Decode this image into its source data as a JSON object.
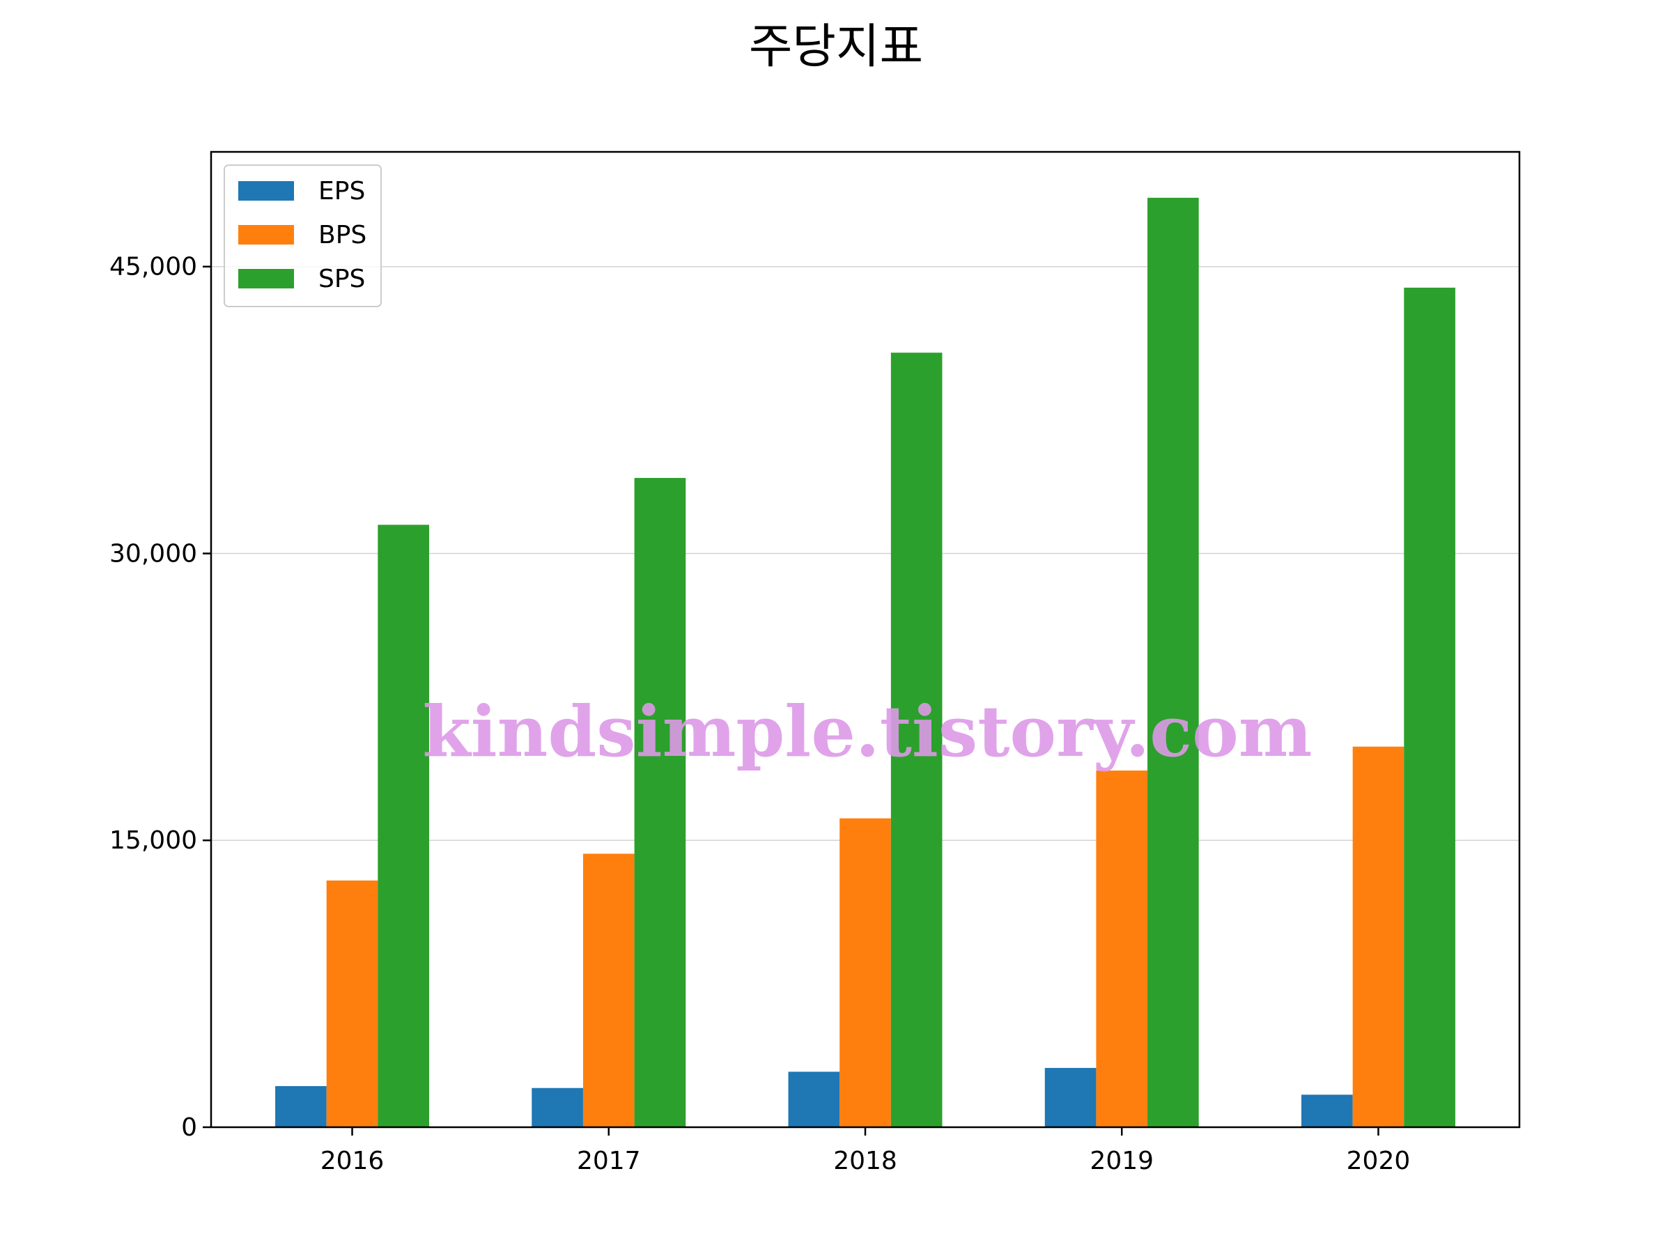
{
  "chart_data": {
    "type": "bar",
    "title": "주당지표",
    "xlabel": "",
    "ylabel": "",
    "categories": [
      "2016",
      "2017",
      "2018",
      "2019",
      "2020"
    ],
    "series": [
      {
        "name": "EPS",
        "color": "#1f77b4",
        "values": [
          2150,
          2050,
          2900,
          3100,
          1700
        ]
      },
      {
        "name": "BPS",
        "color": "#ff7f0e",
        "values": [
          12900,
          14300,
          16150,
          18650,
          19900
        ]
      },
      {
        "name": "SPS",
        "color": "#2ca02c",
        "values": [
          31500,
          33950,
          40500,
          48600,
          43900
        ]
      }
    ],
    "ylim": [
      0,
      51000
    ],
    "yticks": [
      0,
      15000,
      30000,
      45000
    ],
    "ytick_labels": [
      "0",
      "15,000",
      "30,000",
      "45,000"
    ],
    "grid": "y",
    "legend_position": "top-left",
    "watermark": "kindsimple.tistory.com"
  }
}
